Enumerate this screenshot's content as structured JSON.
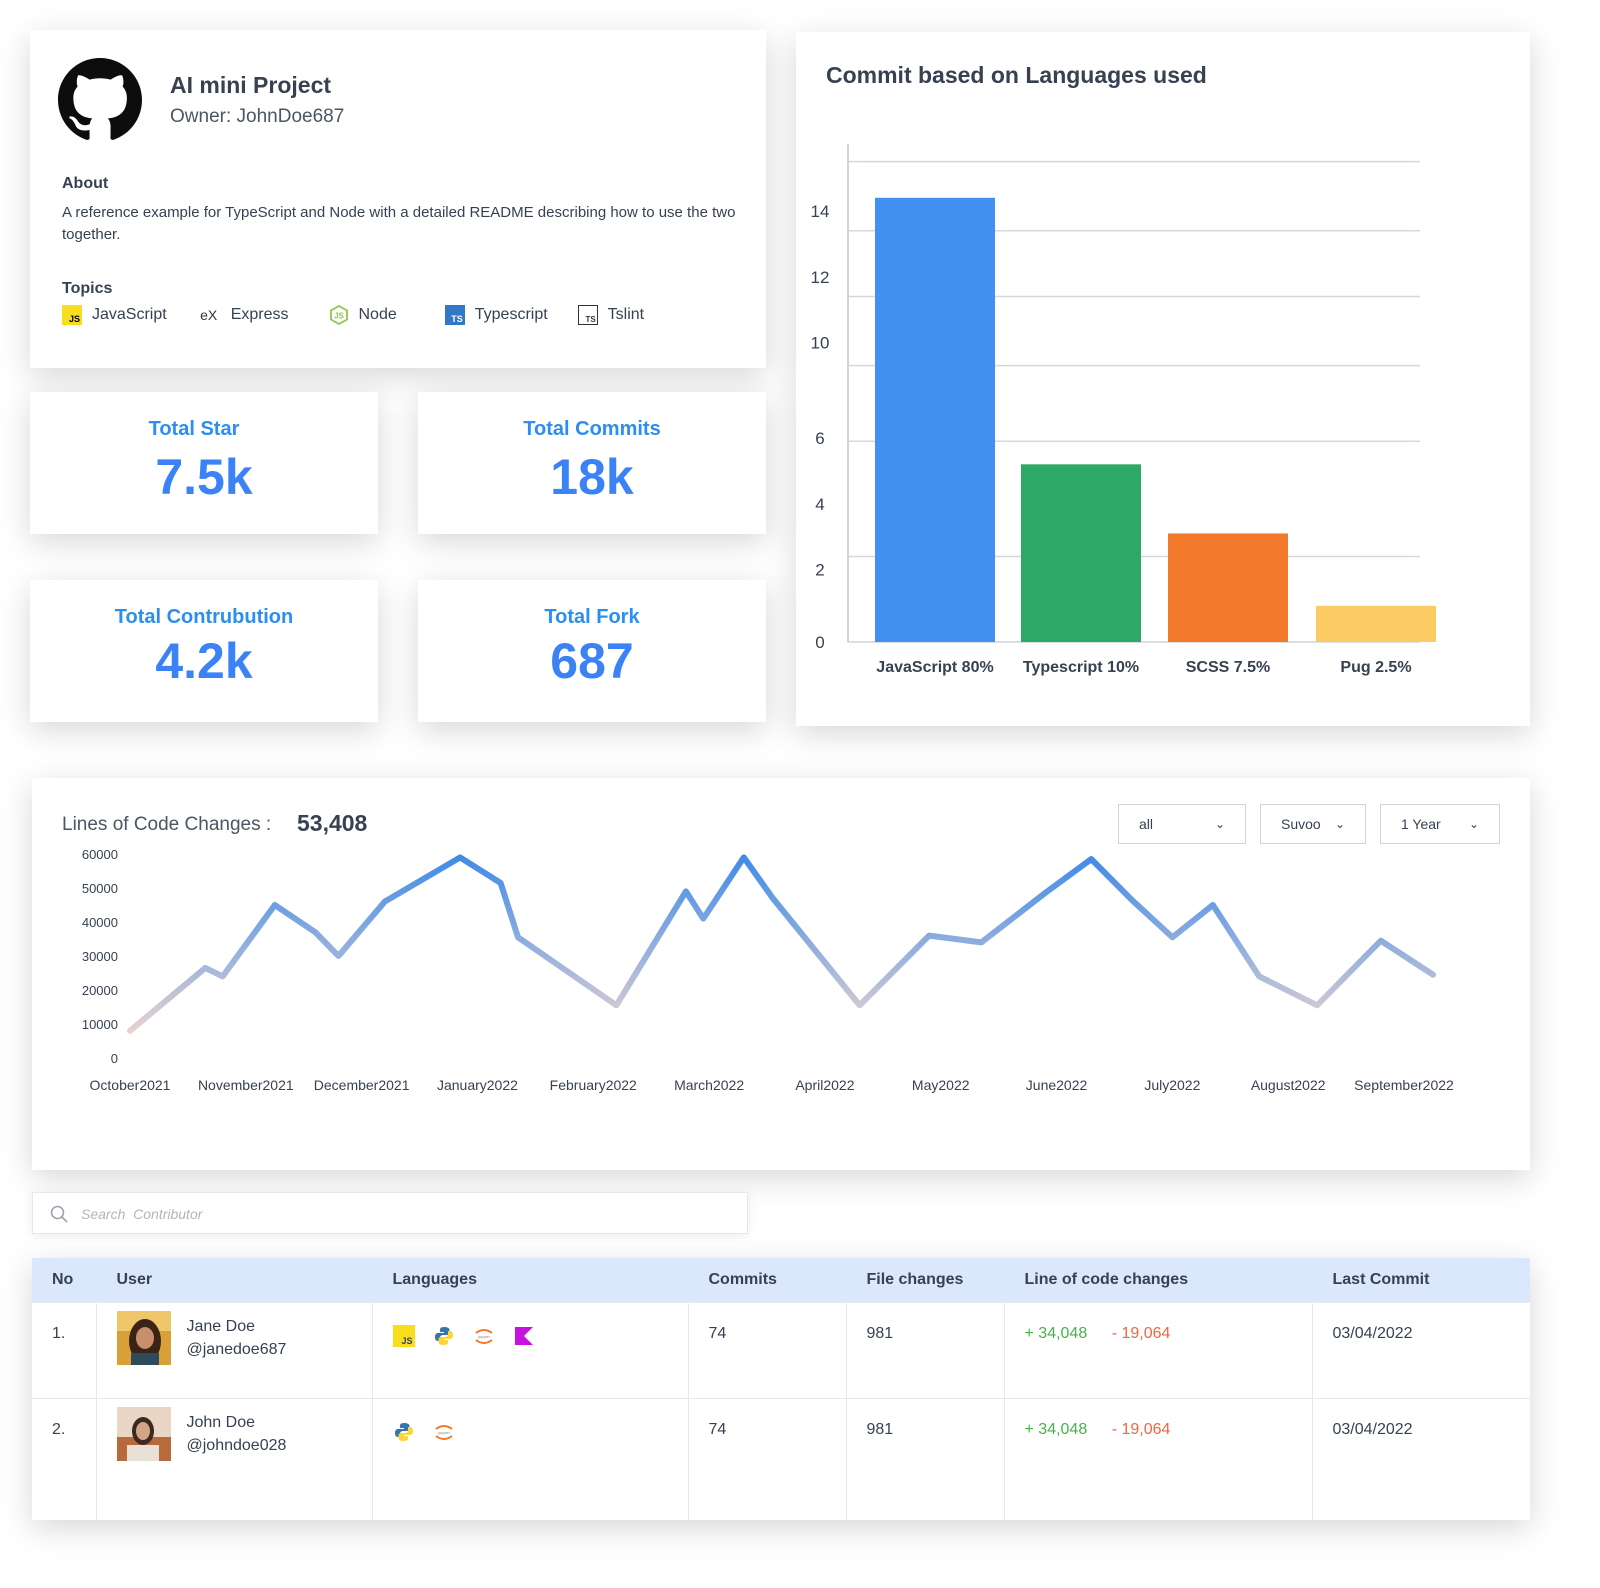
{
  "project": {
    "title": "AI mini Project",
    "owner": "Owner: JohnDoe687",
    "about_heading": "About",
    "about_text": "A reference example for TypeScript and Node with a detailed README describing how to use the two together.",
    "topics_heading": "Topics",
    "topics": [
      {
        "label": "JavaScript",
        "icon": "js-icon"
      },
      {
        "label": "Express",
        "icon": "express-icon"
      },
      {
        "label": "Node",
        "icon": "node-icon"
      },
      {
        "label": "Typescript",
        "icon": "typescript-icon"
      },
      {
        "label": "Tslint",
        "icon": "tslint-icon"
      }
    ]
  },
  "stats": {
    "star": {
      "label": "Total Star",
      "value": "7.5k"
    },
    "commits": {
      "label": "Total Commits",
      "value": "18k"
    },
    "contribution": {
      "label": "Total Contrubution",
      "value": "4.2k"
    },
    "fork": {
      "label": "Total Fork",
      "value": "687"
    }
  },
  "colors": {
    "accent": "#3b82f6",
    "js": "#4190f2",
    "ts": "#2da866",
    "scss": "#f37a2a",
    "pug": "#fdcb63",
    "header_bg": "#dbe8fb",
    "added": "#4caf50",
    "removed": "#f06543"
  },
  "chart_data": [
    {
      "type": "bar",
      "title": "Commit based on Languages used",
      "categories": [
        "JavaScript 80%",
        "Typescript 10%",
        "SCSS 7.5%",
        "Pug 2.5%"
      ],
      "values": [
        13.5,
        5.4,
        3.3,
        1.1
      ],
      "y_ticks": [
        "0",
        "2",
        "4",
        "6",
        "10",
        "12",
        "14"
      ],
      "ylim": [
        0,
        15.5
      ],
      "grid": true
    },
    {
      "type": "line",
      "title": "Lines of Code Changes :",
      "value_label": "53,408",
      "categories": [
        "October2021",
        "November2021",
        "December2021",
        "January2022",
        "February2022",
        "March2022",
        "April2022",
        "May2022",
        "June2022",
        "July2022",
        "August2022",
        "September2022"
      ],
      "y_ticks": [
        "0",
        "10000",
        "20000",
        "30000",
        "40000",
        "50000",
        "60000"
      ],
      "ylim": [
        0,
        60000
      ],
      "x": [
        0,
        0.65,
        0.8,
        1.25,
        1.6,
        1.8,
        2.2,
        2.85,
        3.2,
        3.35,
        4.2,
        4.8,
        4.95,
        5.3,
        5.55,
        6.3,
        6.9,
        7.35,
        7.9,
        8.3,
        8.65,
        9.0,
        9.35,
        9.75,
        10.25,
        10.8,
        11.25
      ],
      "values": [
        8000,
        26500,
        24000,
        45000,
        37000,
        30000,
        46000,
        59000,
        51500,
        35500,
        15500,
        49000,
        41000,
        59000,
        47000,
        15500,
        36000,
        34000,
        48500,
        58500,
        46500,
        35500,
        45000,
        24000,
        15500,
        34500,
        24500
      ]
    }
  ],
  "filters": {
    "scope": "all",
    "user": "Suvoo",
    "period": "1 Year"
  },
  "search": {
    "placeholder": "Search  Contributor"
  },
  "table": {
    "headers": [
      "No",
      "User",
      "Languages",
      "Commits",
      "File changes",
      "Line of code changes",
      "Last Commit"
    ],
    "rows": [
      {
        "no": "1.",
        "name": "Jane Doe",
        "handle": "@janedoe687",
        "languages": [
          "js-icon",
          "python-icon",
          "jupyter-icon",
          "kotlin-icon"
        ],
        "commits": "74",
        "file_changes": "981",
        "added": "+ 34,048",
        "removed": "- 19,064",
        "last_commit": "03/04/2022"
      },
      {
        "no": "2.",
        "name": "John Doe",
        "handle": "@johndoe028",
        "languages": [
          "python-icon",
          "jupyter-icon"
        ],
        "commits": "74",
        "file_changes": "981",
        "added": "+ 34,048",
        "removed": "- 19,064",
        "last_commit": "03/04/2022"
      }
    ]
  }
}
